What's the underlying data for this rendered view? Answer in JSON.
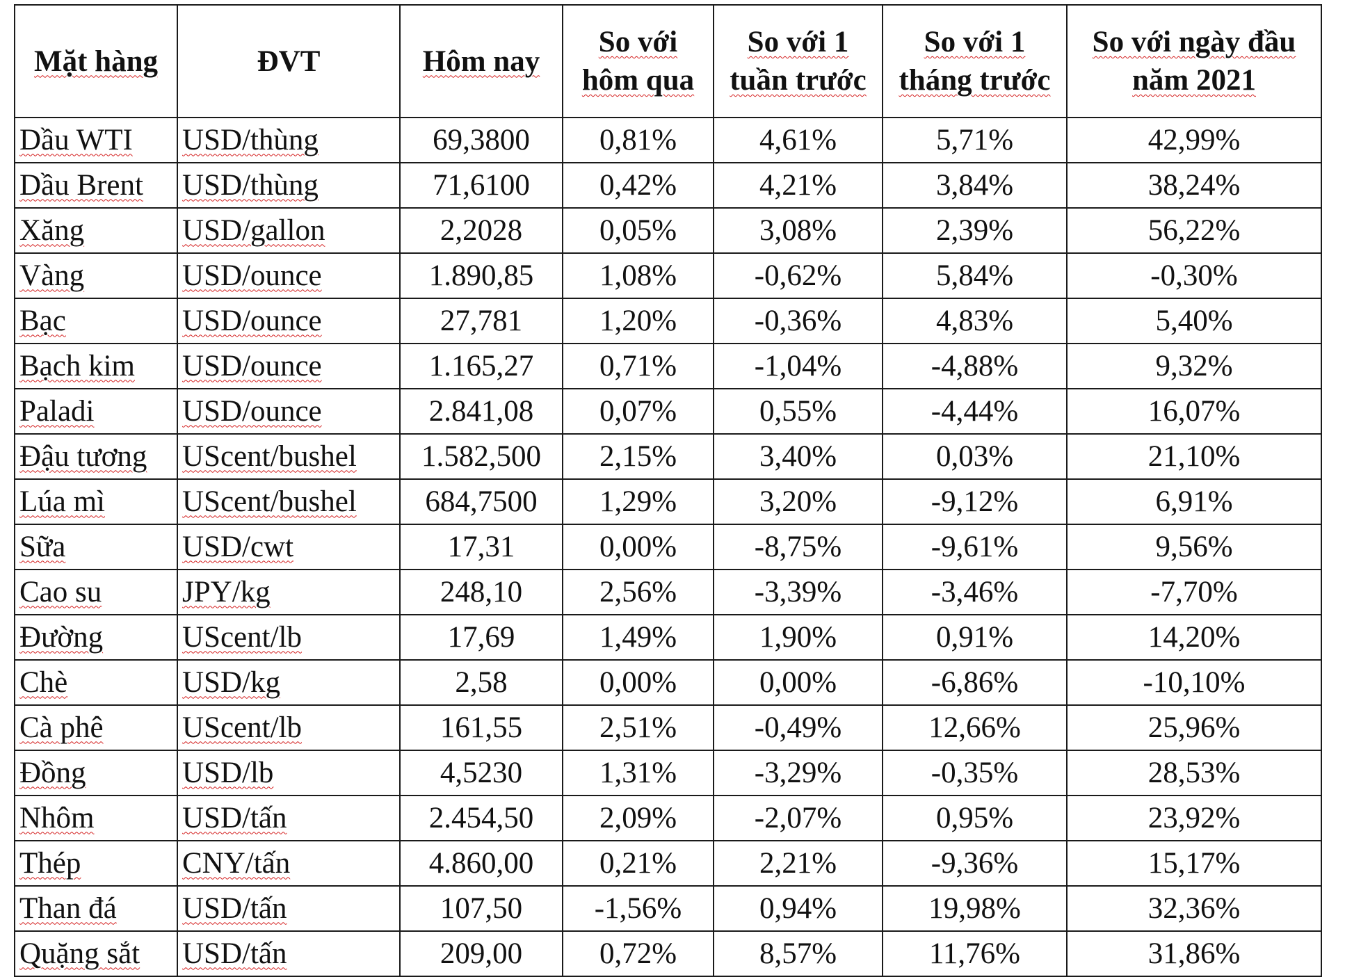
{
  "table": {
    "headers": [
      "Mặt hàng",
      "ĐVT",
      "Hôm nay",
      "So với hôm qua",
      "So với 1 tuần trước",
      "So với 1 tháng trước",
      "So với ngày đầu năm 2021"
    ],
    "rows": [
      [
        "Dầu WTI",
        "USD/thùng",
        "69,3800",
        "0,81%",
        "4,61%",
        "5,71%",
        "42,99%"
      ],
      [
        "Dầu Brent",
        "USD/thùng",
        "71,6100",
        "0,42%",
        "4,21%",
        "3,84%",
        "38,24%"
      ],
      [
        "Xăng",
        "USD/gallon",
        "2,2028",
        "0,05%",
        "3,08%",
        "2,39%",
        "56,22%"
      ],
      [
        "Vàng",
        "USD/ounce",
        "1.890,85",
        "1,08%",
        "-0,62%",
        "5,84%",
        "-0,30%"
      ],
      [
        "Bạc",
        "USD/ounce",
        "27,781",
        "1,20%",
        "-0,36%",
        "4,83%",
        "5,40%"
      ],
      [
        "Bạch kim",
        "USD/ounce",
        "1.165,27",
        "0,71%",
        "-1,04%",
        "-4,88%",
        "9,32%"
      ],
      [
        "Paladi",
        "USD/ounce",
        "2.841,08",
        "0,07%",
        "0,55%",
        "-4,44%",
        "16,07%"
      ],
      [
        "Đậu tương",
        "UScent/bushel",
        "1.582,500",
        "2,15%",
        "3,40%",
        "0,03%",
        "21,10%"
      ],
      [
        "Lúa mì",
        "UScent/bushel",
        "684,7500",
        "1,29%",
        "3,20%",
        "-9,12%",
        "6,91%"
      ],
      [
        "Sữa",
        "USD/cwt",
        "17,31",
        "0,00%",
        "-8,75%",
        "-9,61%",
        "9,56%"
      ],
      [
        "Cao su",
        "JPY/kg",
        "248,10",
        "2,56%",
        "-3,39%",
        "-3,46%",
        "-7,70%"
      ],
      [
        "Đường",
        "UScent/lb",
        "17,69",
        "1,49%",
        "1,90%",
        "0,91%",
        "14,20%"
      ],
      [
        "Chè",
        "USD/kg",
        "2,58",
        "0,00%",
        "0,00%",
        "-6,86%",
        "-10,10%"
      ],
      [
        "Cà phê",
        "UScent/lb",
        "161,55",
        "2,51%",
        "-0,49%",
        "12,66%",
        "25,96%"
      ],
      [
        "Đồng",
        "USD/lb",
        "4,5230",
        "1,31%",
        "-3,29%",
        "-0,35%",
        "28,53%"
      ],
      [
        "Nhôm",
        "USD/tấn",
        "2.454,50",
        "2,09%",
        "-2,07%",
        "0,95%",
        "23,92%"
      ],
      [
        "Thép",
        "CNY/tấn",
        "4.860,00",
        "0,21%",
        "2,21%",
        "-9,36%",
        "15,17%"
      ],
      [
        "Than đá",
        "USD/tấn",
        "107,50",
        "-1,56%",
        "0,94%",
        "19,98%",
        "32,36%"
      ],
      [
        "Quặng sắt",
        "USD/tấn",
        "209,00",
        "0,72%",
        "8,57%",
        "11,76%",
        "31,86%"
      ]
    ]
  }
}
